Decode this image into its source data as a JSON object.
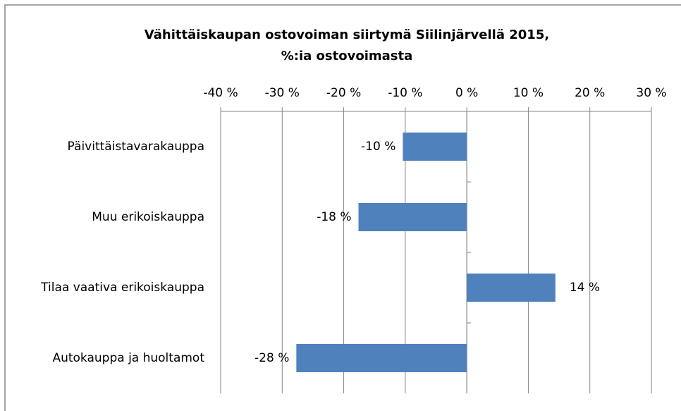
{
  "chart_data": {
    "type": "bar",
    "orientation": "horizontal",
    "title": [
      "Vähittäiskaupan ostovoiman siirtymä Siilinjärvellä 2015,",
      "%:ia ostovoimasta"
    ],
    "categories": [
      "Päivittäistavarakauppa",
      "Muu erikoiskauppa",
      "Tilaa vaativa erikoiskauppa",
      "Autokauppa ja huoltamot"
    ],
    "values": [
      -10.4,
      -17.6,
      14.4,
      -27.7
    ],
    "value_labels": [
      "-10 %",
      "-18 %",
      "14 %",
      "-28 %"
    ],
    "color": "#4f81bd",
    "xlim": [
      -40,
      30
    ],
    "xticks": [
      {
        "value": -40,
        "label": "-40 %"
      },
      {
        "value": -30,
        "label": "-30 %"
      },
      {
        "value": -20,
        "label": "-20 %"
      },
      {
        "value": -10,
        "label": "-10 %"
      },
      {
        "value": 0,
        "label": "0 %"
      },
      {
        "value": 10,
        "label": "10 %"
      },
      {
        "value": 20,
        "label": "20 %"
      },
      {
        "value": 30,
        "label": "30 %"
      }
    ],
    "grid": true
  }
}
